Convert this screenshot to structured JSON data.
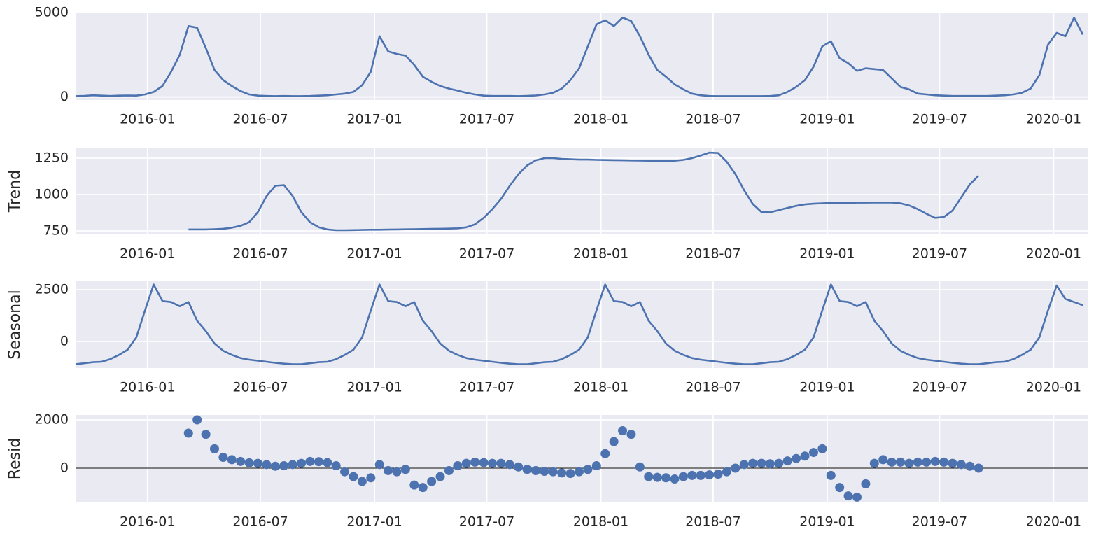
{
  "chart_data": {
    "type": "decomposition",
    "color": "#4c72b0",
    "grid": true,
    "xlim": [
      "2015-09-07",
      "2020-02-26"
    ],
    "xticks": [
      "2016-01",
      "2016-07",
      "2017-01",
      "2017-07",
      "2018-01",
      "2018-07",
      "2019-01",
      "2019-07",
      "2020-01"
    ],
    "x": [
      "2015-09-07",
      "2015-09-21",
      "2015-10-05",
      "2015-10-19",
      "2015-11-02",
      "2015-11-16",
      "2015-11-30",
      "2015-12-14",
      "2015-12-28",
      "2016-01-11",
      "2016-01-25",
      "2016-02-08",
      "2016-02-22",
      "2016-03-07",
      "2016-03-21",
      "2016-04-04",
      "2016-04-18",
      "2016-05-02",
      "2016-05-16",
      "2016-05-30",
      "2016-06-13",
      "2016-06-27",
      "2016-07-11",
      "2016-07-25",
      "2016-08-08",
      "2016-08-22",
      "2016-09-05",
      "2016-09-19",
      "2016-10-03",
      "2016-10-17",
      "2016-10-31",
      "2016-11-14",
      "2016-11-28",
      "2016-12-12",
      "2016-12-26",
      "2017-01-09",
      "2017-01-23",
      "2017-02-06",
      "2017-02-20",
      "2017-03-06",
      "2017-03-20",
      "2017-04-03",
      "2017-04-17",
      "2017-05-01",
      "2017-05-15",
      "2017-05-29",
      "2017-06-12",
      "2017-06-26",
      "2017-07-10",
      "2017-07-24",
      "2017-08-07",
      "2017-08-21",
      "2017-09-04",
      "2017-09-18",
      "2017-10-02",
      "2017-10-16",
      "2017-10-30",
      "2017-11-13",
      "2017-11-27",
      "2017-12-11",
      "2017-12-25",
      "2018-01-08",
      "2018-01-22",
      "2018-02-05",
      "2018-02-19",
      "2018-03-05",
      "2018-03-19",
      "2018-04-02",
      "2018-04-16",
      "2018-04-30",
      "2018-05-14",
      "2018-05-28",
      "2018-06-11",
      "2018-06-25",
      "2018-07-09",
      "2018-07-23",
      "2018-08-06",
      "2018-08-20",
      "2018-09-03",
      "2018-09-17",
      "2018-10-01",
      "2018-10-15",
      "2018-10-29",
      "2018-11-12",
      "2018-11-26",
      "2018-12-10",
      "2018-12-24",
      "2019-01-07",
      "2019-01-21",
      "2019-02-04",
      "2019-02-18",
      "2019-03-04",
      "2019-03-18",
      "2019-04-01",
      "2019-04-15",
      "2019-04-29",
      "2019-05-13",
      "2019-05-27",
      "2019-06-10",
      "2019-06-24",
      "2019-07-08",
      "2019-07-22",
      "2019-08-05",
      "2019-08-19",
      "2019-09-02",
      "2019-09-16",
      "2019-09-30",
      "2019-10-14",
      "2019-10-28",
      "2019-11-11",
      "2019-11-25",
      "2019-12-09",
      "2019-12-23",
      "2020-01-06",
      "2020-01-20",
      "2020-02-03",
      "2020-02-17"
    ],
    "panels": [
      {
        "type": "line",
        "ylim": [
          -180,
          5000
        ],
        "yticks": [
          0,
          5000
        ],
        "values": [
          50,
          70,
          100,
          80,
          60,
          80,
          90,
          80,
          150,
          300,
          650,
          1500,
          2500,
          4200,
          4100,
          2900,
          1600,
          1000,
          650,
          350,
          150,
          80,
          60,
          50,
          60,
          50,
          50,
          60,
          80,
          100,
          150,
          200,
          300,
          700,
          1500,
          3600,
          2700,
          2550,
          2450,
          1900,
          1200,
          900,
          650,
          500,
          380,
          250,
          150,
          80,
          60,
          60,
          60,
          50,
          70,
          90,
          150,
          250,
          500,
          1000,
          1700,
          3000,
          4300,
          4550,
          4200,
          4700,
          4500,
          3600,
          2500,
          1600,
          1200,
          750,
          450,
          200,
          100,
          60,
          50,
          50,
          50,
          50,
          50,
          50,
          60,
          100,
          300,
          600,
          1000,
          1800,
          3000,
          3300,
          2300,
          2000,
          1550,
          1700,
          1650,
          1600,
          1100,
          600,
          450,
          200,
          150,
          100,
          80,
          60,
          60,
          60,
          60,
          60,
          80,
          100,
          150,
          250,
          500,
          1300,
          3100,
          3800,
          3600,
          4700,
          3700
        ]
      },
      {
        "type": "line",
        "ylabel": "Trend",
        "ylim": [
          726,
          1322
        ],
        "yticks": [
          750,
          1000,
          1250
        ],
        "values": [
          null,
          null,
          null,
          null,
          null,
          null,
          null,
          null,
          null,
          null,
          null,
          null,
          null,
          760,
          760,
          760,
          762,
          765,
          772,
          785,
          810,
          880,
          990,
          1060,
          1065,
          990,
          880,
          810,
          775,
          760,
          755,
          755,
          756,
          757,
          758,
          758,
          759,
          760,
          761,
          762,
          763,
          764,
          765,
          766,
          768,
          775,
          795,
          840,
          900,
          970,
          1060,
          1140,
          1200,
          1235,
          1250,
          1250,
          1245,
          1242,
          1240,
          1240,
          1238,
          1237,
          1236,
          1235,
          1234,
          1233,
          1232,
          1230,
          1230,
          1232,
          1238,
          1250,
          1268,
          1288,
          1285,
          1225,
          1140,
          1030,
          935,
          880,
          878,
          893,
          908,
          922,
          932,
          937,
          940,
          942,
          943,
          943,
          944,
          944,
          945,
          945,
          945,
          940,
          925,
          900,
          868,
          840,
          845,
          890,
          980,
          1070,
          1130,
          null,
          null,
          null,
          null,
          null,
          null,
          null,
          null,
          null,
          null,
          null,
          null
        ]
      },
      {
        "type": "line",
        "ylabel": "Seasonal",
        "ylim": [
          -1284,
          2905
        ],
        "yticks": [
          0,
          2500
        ],
        "values": [
          -1100,
          -1050,
          -1000,
          -980,
          -850,
          -650,
          -400,
          200,
          1500,
          2750,
          1950,
          1900,
          1700,
          1900,
          1000,
          500,
          -100,
          -450,
          -650,
          -800,
          -880,
          -930,
          -980,
          -1030,
          -1070,
          -1100,
          -1100,
          -1050,
          -1000,
          -980,
          -850,
          -650,
          -400,
          200,
          1500,
          2750,
          1950,
          1900,
          1700,
          1900,
          1000,
          500,
          -100,
          -450,
          -650,
          -800,
          -880,
          -930,
          -980,
          -1030,
          -1070,
          -1100,
          -1100,
          -1050,
          -1000,
          -980,
          -850,
          -650,
          -400,
          200,
          1500,
          2750,
          1950,
          1900,
          1700,
          1900,
          1000,
          500,
          -100,
          -450,
          -650,
          -800,
          -880,
          -930,
          -980,
          -1030,
          -1070,
          -1100,
          -1100,
          -1050,
          -1000,
          -980,
          -850,
          -650,
          -400,
          200,
          1500,
          2750,
          1950,
          1900,
          1700,
          1900,
          1000,
          500,
          -100,
          -450,
          -650,
          -800,
          -880,
          -930,
          -980,
          -1030,
          -1070,
          -1100,
          -1100,
          -1050,
          -1000,
          -980,
          -850,
          -650,
          -400,
          200,
          1500,
          2700,
          2050,
          1900,
          1750
        ]
      },
      {
        "type": "scatter",
        "ylabel": "Resid",
        "ylim": [
          -1420,
          2203
        ],
        "yticks": [
          0,
          2000
        ],
        "axhline": 0,
        "values": [
          null,
          null,
          null,
          null,
          null,
          null,
          null,
          null,
          null,
          null,
          null,
          null,
          null,
          1450,
          2000,
          1400,
          800,
          450,
          350,
          280,
          220,
          200,
          150,
          80,
          100,
          150,
          200,
          280,
          270,
          230,
          100,
          -150,
          -350,
          -550,
          -400,
          150,
          -100,
          -150,
          -50,
          -700,
          -800,
          -550,
          -350,
          -100,
          100,
          200,
          250,
          230,
          200,
          200,
          150,
          50,
          -50,
          -100,
          -130,
          -150,
          -200,
          -220,
          -150,
          -50,
          100,
          600,
          1100,
          1550,
          1400,
          50,
          -350,
          -380,
          -400,
          -450,
          -350,
          -300,
          -300,
          -280,
          -250,
          -150,
          0,
          150,
          200,
          200,
          180,
          200,
          300,
          400,
          500,
          650,
          800,
          -300,
          -800,
          -1150,
          -1200,
          -650,
          200,
          350,
          250,
          250,
          200,
          250,
          250,
          280,
          250,
          200,
          150,
          80,
          0,
          null,
          null,
          null,
          null,
          null,
          null,
          null,
          null,
          null,
          null,
          null,
          null
        ]
      }
    ]
  }
}
